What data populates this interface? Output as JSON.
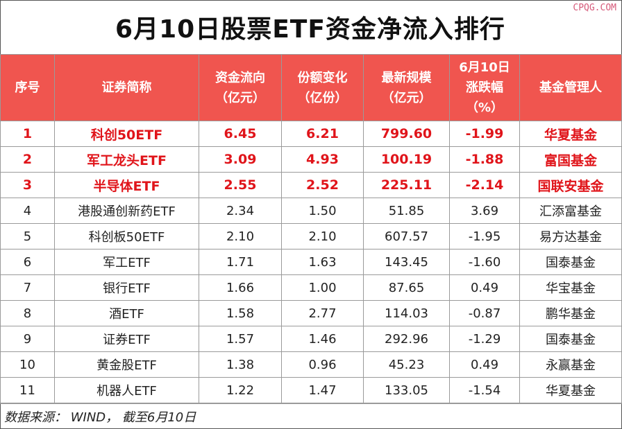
{
  "title": "6月10日股票ETF资金净流入排行",
  "watermark": "CPQG.COM",
  "headers": {
    "rank": "序号",
    "name": "证券简称",
    "inflow_l1": "资金流向",
    "inflow_l2": "（亿元）",
    "share_l1": "份额变化",
    "share_l2": "（亿份）",
    "scale_l1": "最新规模",
    "scale_l2": "（亿元）",
    "change_l1": "6月10日",
    "change_l2": "涨跌幅",
    "change_l3": "（%）",
    "manager": "基金管理人"
  },
  "rows": [
    {
      "rank": "1",
      "name": "科创50ETF",
      "inflow": "6.45",
      "share": "6.21",
      "scale": "799.60",
      "change": "-1.99",
      "manager": "华夏基金",
      "highlight": true
    },
    {
      "rank": "2",
      "name": "军工龙头ETF",
      "inflow": "3.09",
      "share": "4.93",
      "scale": "100.19",
      "change": "-1.88",
      "manager": "富国基金",
      "highlight": true
    },
    {
      "rank": "3",
      "name": "半导体ETF",
      "inflow": "2.55",
      "share": "2.52",
      "scale": "225.11",
      "change": "-2.14",
      "manager": "国联安基金",
      "highlight": true
    },
    {
      "rank": "4",
      "name": "港股通创新药ETF",
      "inflow": "2.34",
      "share": "1.50",
      "scale": "51.85",
      "change": "3.69",
      "manager": "汇添富基金",
      "highlight": false
    },
    {
      "rank": "5",
      "name": "科创板50ETF",
      "inflow": "2.10",
      "share": "2.10",
      "scale": "607.57",
      "change": "-1.95",
      "manager": "易方达基金",
      "highlight": false
    },
    {
      "rank": "6",
      "name": "军工ETF",
      "inflow": "1.71",
      "share": "1.63",
      "scale": "143.45",
      "change": "-1.60",
      "manager": "国泰基金",
      "highlight": false
    },
    {
      "rank": "7",
      "name": "银行ETF",
      "inflow": "1.66",
      "share": "1.00",
      "scale": "87.65",
      "change": "0.49",
      "manager": "华宝基金",
      "highlight": false
    },
    {
      "rank": "8",
      "name": "酒ETF",
      "inflow": "1.58",
      "share": "2.77",
      "scale": "114.03",
      "change": "-0.87",
      "manager": "鹏华基金",
      "highlight": false
    },
    {
      "rank": "9",
      "name": "证券ETF",
      "inflow": "1.57",
      "share": "1.46",
      "scale": "292.96",
      "change": "-1.29",
      "manager": "国泰基金",
      "highlight": false
    },
    {
      "rank": "10",
      "name": "黄金股ETF",
      "inflow": "1.38",
      "share": "0.96",
      "scale": "45.23",
      "change": "0.49",
      "manager": "永赢基金",
      "highlight": false
    },
    {
      "rank": "11",
      "name": "机器人ETF",
      "inflow": "1.22",
      "share": "1.47",
      "scale": "133.05",
      "change": "-1.54",
      "manager": "华夏基金",
      "highlight": false
    }
  ],
  "footer": "数据来源： WIND， 截至6月10日",
  "colors": {
    "header_bg": "#f0554f",
    "highlight_text": "#e0141a"
  }
}
